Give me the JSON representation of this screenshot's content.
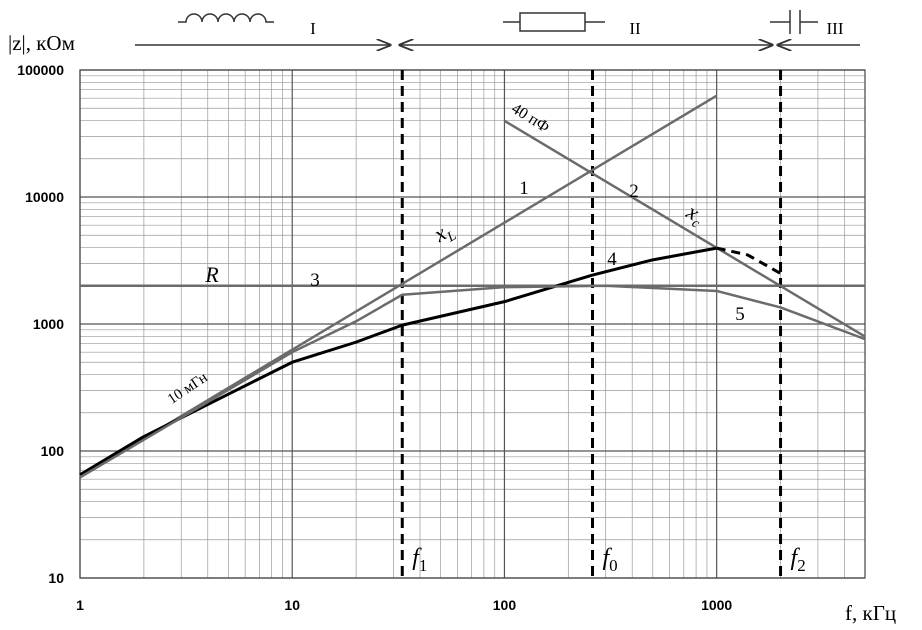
{
  "chart_data": {
    "type": "line",
    "log_x": true,
    "log_y": true,
    "ylabel": "|z|, кОм",
    "xlabel": "f, кГц",
    "xlim": [
      1,
      5000
    ],
    "ylim": [
      10,
      100000
    ],
    "xticks": [
      1,
      10,
      100,
      1000
    ],
    "yticks": [
      10,
      100,
      1000,
      10000,
      100000
    ],
    "grid": true,
    "minor_grid": true,
    "regions": [
      "I",
      "II",
      "III"
    ],
    "markers": [
      {
        "value": 33,
        "label": "f",
        "sub": "1"
      },
      {
        "value": 260,
        "label": "f",
        "sub": "0"
      },
      {
        "value": 2000,
        "label": "f",
        "sub": "2"
      }
    ],
    "annotations": [
      {
        "text": "40 пФ"
      },
      {
        "text": "10 мГн"
      },
      {
        "text": "x",
        "sub": "L"
      },
      {
        "text": "x",
        "sub": "c"
      },
      {
        "text": "R"
      }
    ],
    "series": [
      {
        "name": "1",
        "color": "#6b6b6b",
        "x": [
          1,
          1000
        ],
        "values": [
          62.8,
          62800
        ]
      },
      {
        "name": "2",
        "color": "#6b6b6b",
        "x": [
          100,
          5000
        ],
        "values": [
          39800,
          796
        ]
      },
      {
        "name": "3",
        "color": "#6b6b6b",
        "x": [
          1,
          5000
        ],
        "values": [
          2000,
          2000
        ]
      },
      {
        "name": "4",
        "color": "#000000",
        "x": [
          1,
          2,
          5,
          10,
          20,
          33,
          100,
          260,
          500,
          1000
        ],
        "values": [
          65,
          130,
          280,
          500,
          720,
          980,
          1500,
          2430,
          3200,
          3960
        ]
      },
      {
        "color": "#000000",
        "dash": true,
        "x": [
          1000,
          1400,
          2000
        ],
        "values": [
          3960,
          3500,
          2500
        ]
      },
      {
        "name": "5",
        "color": "#6b6b6b",
        "x": [
          1,
          10,
          20,
          33,
          100,
          300,
          1000,
          2000,
          5000
        ],
        "values": [
          62,
          600,
          1050,
          1700,
          1950,
          2000,
          1820,
          1350,
          760
        ]
      }
    ]
  }
}
